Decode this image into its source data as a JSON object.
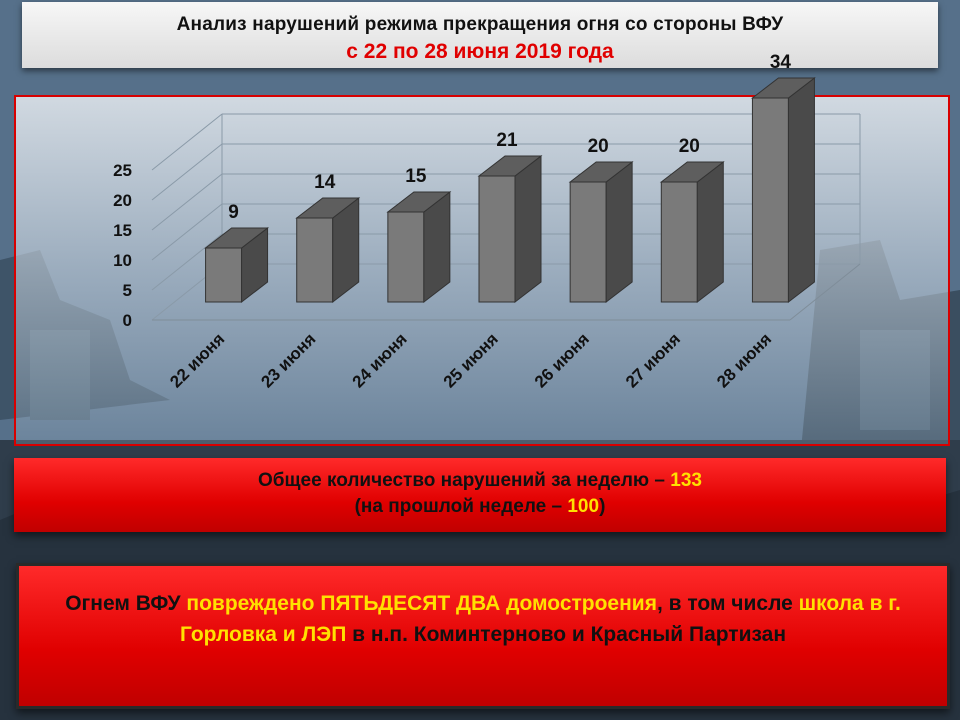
{
  "header": {
    "title": "Анализ нарушений режима прекращения огня со стороны ВФУ",
    "period": "с 22 по 28 июня 2019 года"
  },
  "chart_data": {
    "type": "bar",
    "categories": [
      "22 июня",
      "23 июня",
      "24 июня",
      "25 июня",
      "26 июня",
      "27 июня",
      "28 июня"
    ],
    "values": [
      9,
      14,
      15,
      21,
      20,
      20,
      34
    ],
    "data_labels": [
      "9",
      "14",
      "15",
      "21",
      "20",
      "20",
      "34"
    ],
    "ylim": [
      0,
      25
    ],
    "yticks": [
      "0",
      "5",
      "10",
      "15",
      "20",
      "25"
    ],
    "grid": true,
    "bar_color": "#7b7b7b"
  },
  "summary": {
    "total_prefix": "Общее количество нарушений за неделю – ",
    "total_value": "133",
    "prev_prefix": "(на прошлой неделе – ",
    "prev_value": "100",
    "prev_suffix": ")"
  },
  "damage": {
    "p1": "Огнем ВФУ ",
    "p2": "повреждено ",
    "p3": "ПЯТЬДЕСЯТ ДВА ",
    "p4": "домостроения",
    "p5": ", в том числе ",
    "p6": "школа в г. Горловка и ЛЭП",
    "p7": " в н.п. ",
    "p8": "Коминтерново",
    "p9": " и Красный Партизан"
  },
  "colors": {
    "accent_red": "#e00000",
    "highlight_yellow": "#ffe100"
  }
}
